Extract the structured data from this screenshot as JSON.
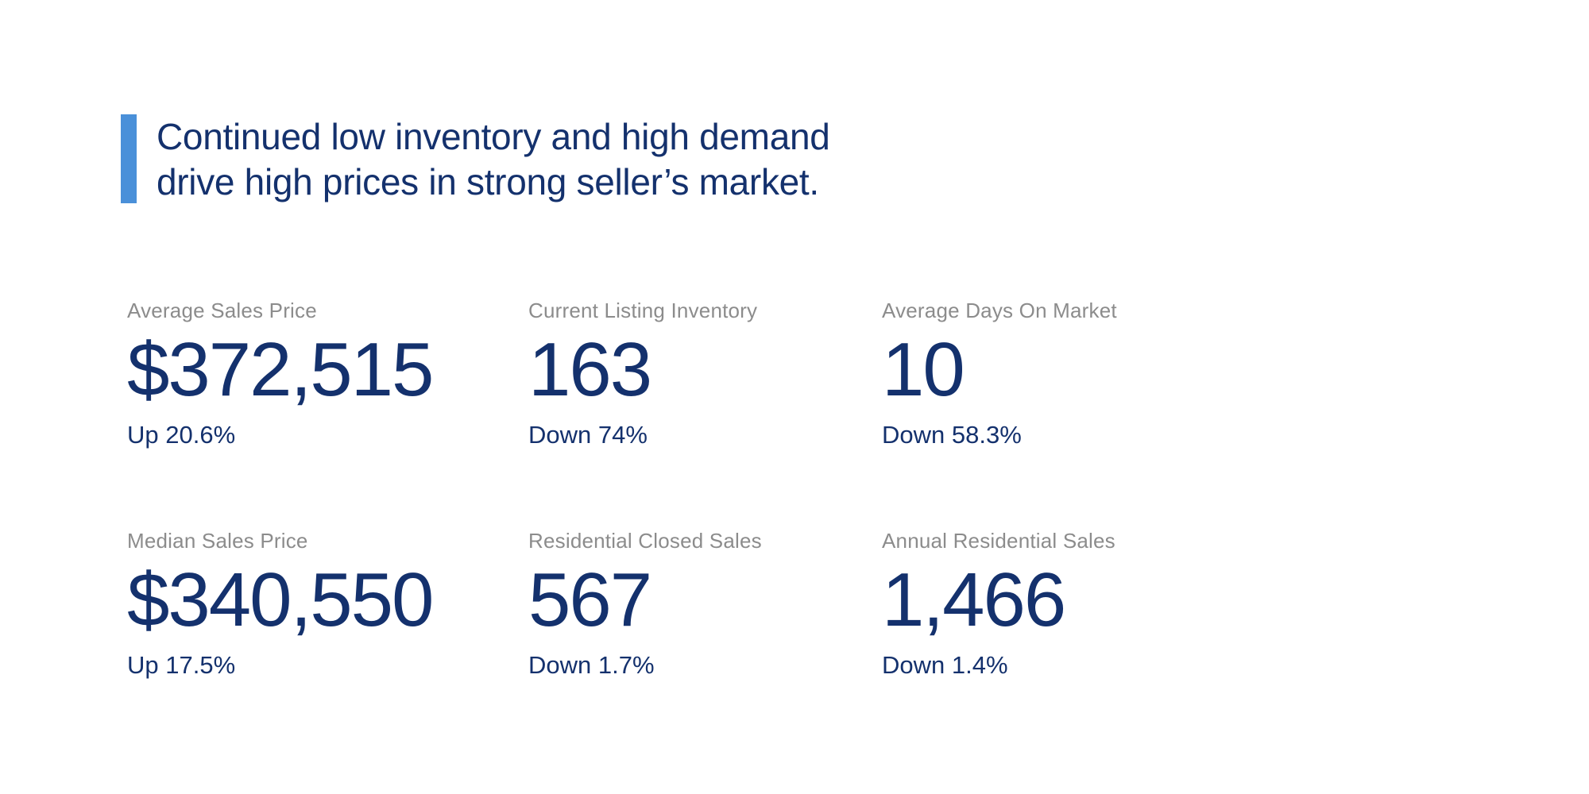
{
  "colors": {
    "accent_bar": "#4a90d9",
    "navy_text": "#14316d",
    "label_gray": "#8c8c8c",
    "background": "#ffffff"
  },
  "headline": {
    "line1": "Continued low inventory and high demand",
    "line2": "drive high prices in strong seller’s market."
  },
  "stats": [
    {
      "label": "Average Sales Price",
      "value": "$372,515",
      "change": "Up 20.6%"
    },
    {
      "label": "Current Listing Inventory",
      "value": "163",
      "change": "Down 74%"
    },
    {
      "label": "Average Days On Market",
      "value": "10",
      "change": "Down 58.3%"
    },
    {
      "label": "Median Sales Price",
      "value": "$340,550",
      "change": "Up 17.5%"
    },
    {
      "label": "Residential Closed Sales",
      "value": "567",
      "change": "Down 1.7%"
    },
    {
      "label": "Annual Residential Sales",
      "value": "1,466",
      "change": "Down 1.4%"
    }
  ]
}
